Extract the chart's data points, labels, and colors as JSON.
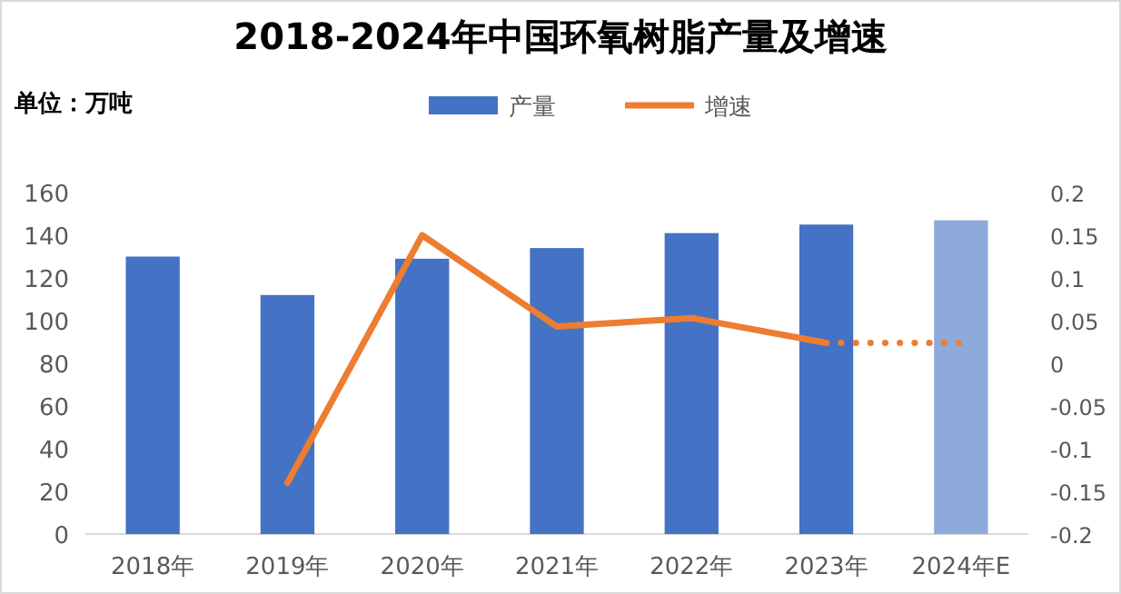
{
  "chart_data": {
    "type": "bar",
    "title": "2018-2024年中国环氧树脂产量及增速",
    "ylabel": "单位：万吨",
    "categories": [
      "2018年",
      "2019年",
      "2020年",
      "2021年",
      "2022年",
      "2023年",
      "2024年E"
    ],
    "series": [
      {
        "name": "产量",
        "color": "#4472c4",
        "colors": [
          "#4472c4",
          "#4472c4",
          "#4472c4",
          "#4472c4",
          "#4472c4",
          "#4472c4",
          "#8eaadb"
        ],
        "values": [
          130,
          112,
          129,
          134,
          141,
          145,
          147
        ]
      },
      {
        "name": "增速",
        "type": "line",
        "axis": "y2",
        "color": "#ed7d31",
        "line_style": "solid",
        "values": [
          null,
          -0.14,
          0.15,
          0.043,
          0.053,
          0.024,
          null
        ]
      },
      {
        "type": "line",
        "axis": "y2",
        "color": "#ed7d31",
        "line_style": "dotted",
        "values": [
          null,
          null,
          null,
          null,
          null,
          0.024,
          0.024
        ]
      }
    ],
    "ylim": [
      0,
      160
    ],
    "yticks": [
      0,
      20,
      40,
      60,
      80,
      100,
      120,
      140,
      160
    ],
    "y2lim": [
      -0.2,
      0.2
    ],
    "y2ticks": [
      -0.2,
      -0.15,
      -0.1,
      -0.05,
      0,
      0.05,
      0.1,
      0.15,
      0.2
    ],
    "legend": "top",
    "grid": false
  }
}
